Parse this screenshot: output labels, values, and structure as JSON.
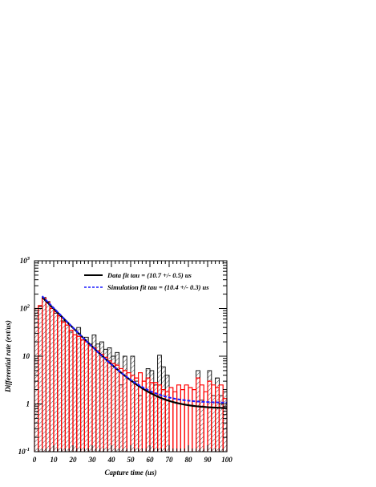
{
  "chart_data": {
    "type": "histogram",
    "xlabel": "Capture time (us)",
    "ylabel": "Differential rate (evt/us)",
    "xlim": [
      0,
      100
    ],
    "ylim": [
      0.1,
      1000
    ],
    "log_y": true,
    "x_ticks": [
      "0",
      "10",
      "20",
      "30",
      "40",
      "50",
      "60",
      "70",
      "80",
      "90",
      "100"
    ],
    "y_ticks": [
      {
        "value": 0.1,
        "base": "10",
        "exp": "-1"
      },
      {
        "value": 1,
        "base": "1",
        "exp": ""
      },
      {
        "value": 10,
        "base": "10",
        "exp": ""
      },
      {
        "value": 100,
        "base": "10",
        "exp": "2"
      },
      {
        "value": 1000,
        "base": "10",
        "exp": "3"
      }
    ],
    "bin_width": 2,
    "data_histogram": {
      "color": "#000000",
      "hatched": true,
      "bin_starts": [
        0,
        2,
        4,
        6,
        8,
        10,
        12,
        14,
        16,
        18,
        20,
        22,
        24,
        26,
        28,
        30,
        32,
        34,
        36,
        38,
        40,
        42,
        44,
        46,
        48,
        50,
        52,
        54,
        56,
        58,
        60,
        62,
        64,
        66,
        68,
        70,
        72,
        74,
        76,
        78,
        80,
        82,
        84,
        86,
        88,
        90,
        92,
        94,
        96,
        98
      ],
      "values": [
        100,
        110,
        170,
        140,
        100,
        80,
        70,
        55,
        45,
        32,
        28,
        40,
        22,
        25,
        18,
        28,
        18,
        20,
        14,
        15,
        10,
        12,
        2.5,
        10,
        0.1,
        10,
        3,
        1.5,
        0.1,
        5.5,
        5,
        2.5,
        10.5,
        6,
        4,
        0.1,
        0.1,
        0.1,
        0.1,
        0.1,
        0.1,
        0.1,
        5,
        1.2,
        0.1,
        5,
        1.5,
        3.5,
        1.5,
        1.8
      ]
    },
    "simulation_histogram": {
      "color": "#ff0000",
      "bin_starts": [
        0,
        2,
        4,
        6,
        8,
        10,
        12,
        14,
        16,
        18,
        20,
        22,
        24,
        26,
        28,
        30,
        32,
        34,
        36,
        38,
        40,
        42,
        44,
        46,
        48,
        50,
        52,
        54,
        56,
        58,
        60,
        62,
        64,
        66,
        68,
        70,
        72,
        74,
        76,
        78,
        80,
        82,
        84,
        86,
        88,
        90,
        92,
        94,
        96,
        98
      ],
      "values": [
        100,
        115,
        165,
        135,
        100,
        85,
        70,
        52,
        45,
        35,
        28,
        26,
        22,
        20,
        17,
        15,
        13,
        11,
        9.5,
        8,
        7,
        6.5,
        5.5,
        5,
        4.5,
        4,
        3.5,
        4.5,
        3,
        3.5,
        2.8,
        2.8,
        2.5,
        2,
        1.8,
        2.2,
        1.8,
        2.5,
        2,
        2.5,
        2.2,
        2,
        3.5,
        2.5,
        1.8,
        3,
        2.5,
        2.2,
        2.5,
        1.3
      ]
    },
    "fits": [
      {
        "name": "Data fit tau = (10.7 +/- 0.5) us",
        "color": "#000000",
        "style": "solid",
        "tau": 10.7,
        "amplitude": 250,
        "constant": 0.8
      },
      {
        "name": "Simulation fit tau = (10.4 +/- 0.3) us",
        "color": "#1a1aff",
        "style": "dashed",
        "tau": 10.4,
        "amplitude": 265,
        "constant": 1.05
      }
    ],
    "fit_x_start": 4,
    "legend_position": "top-right"
  }
}
